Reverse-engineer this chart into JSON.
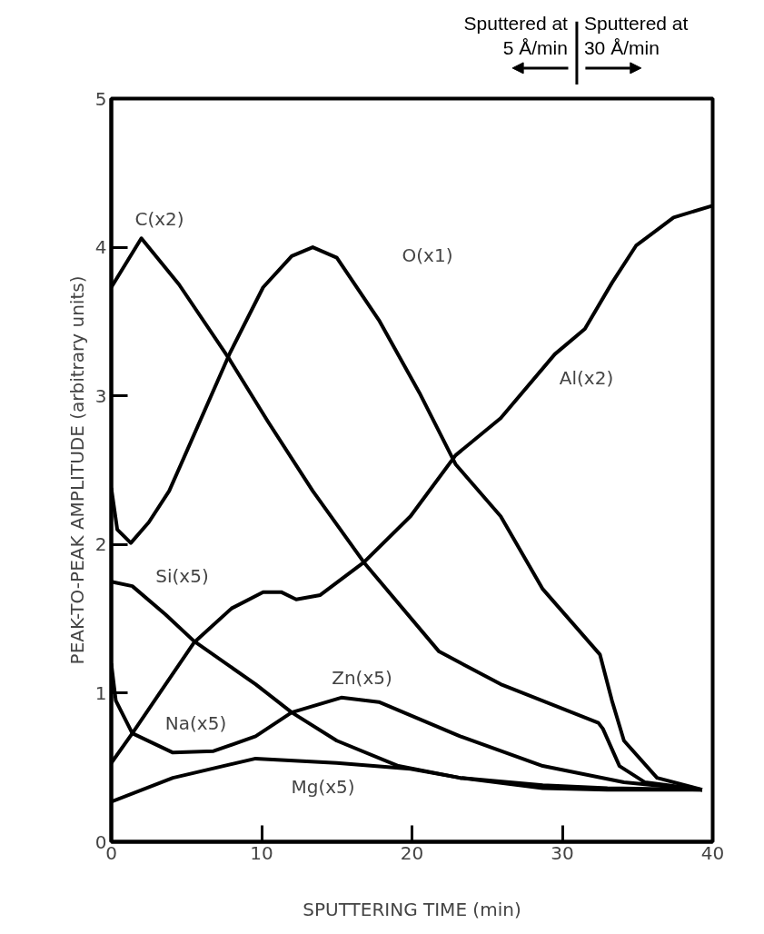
{
  "chart_data": {
    "type": "line",
    "xlabel": "SPUTTERING TIME (min)",
    "ylabel": "PEAK-TO-PEAK AMPLITUDE (arbitrary units)",
    "xlim": [
      0,
      40
    ],
    "ylim": [
      0,
      5
    ],
    "xticks": [
      0,
      10,
      20,
      30,
      40
    ],
    "yticks": [
      0,
      1,
      2,
      3,
      4,
      5
    ],
    "grid": false,
    "marker": "none",
    "line_style": "solid",
    "series": [
      {
        "color": "#000000",
        "x": [
          0,
          2.0,
          4.5,
          7.9,
          10.4,
          13.4,
          16.8,
          21.8,
          25.9,
          32.4,
          32.7,
          33.8,
          35.5,
          39.3
        ],
        "values": [
          3.73,
          4.06,
          3.75,
          3.24,
          2.83,
          2.36,
          1.88,
          1.28,
          1.06,
          0.8,
          0.76,
          0.51,
          0.4,
          0.35
        ]
      },
      {
        "color": "#000000",
        "x": [
          0,
          0.4,
          1.3,
          2.5,
          3.85,
          4.9,
          7.9,
          10.1,
          12.0,
          13.4,
          15.0,
          17.8,
          20.5,
          22.9,
          25.9,
          28.7,
          32.5,
          33.3,
          34.1,
          36.3,
          39.3
        ],
        "values": [
          2.38,
          2.1,
          2.01,
          2.15,
          2.36,
          2.6,
          3.29,
          3.73,
          3.94,
          4.0,
          3.93,
          3.51,
          3.02,
          2.54,
          2.19,
          1.7,
          1.26,
          0.95,
          0.68,
          0.43,
          0.35
        ]
      },
      {
        "color": "#000000",
        "x": [
          0,
          1.4,
          5.5,
          8.0,
          10.1,
          11.3,
          12.3,
          13.9,
          16.8,
          19.9,
          22.9,
          25.9,
          29.5,
          31.5,
          33.3,
          34.9,
          37.4,
          40
        ],
        "values": [
          0.53,
          0.73,
          1.34,
          1.57,
          1.68,
          1.68,
          1.63,
          1.66,
          1.88,
          2.19,
          2.6,
          2.85,
          3.28,
          3.45,
          3.76,
          4.01,
          4.2,
          4.28
        ]
      },
      {
        "color": "#000000",
        "x": [
          0,
          1.4,
          3.6,
          5.5,
          9.6,
          12.0,
          15.0,
          19.1,
          23.2,
          28.7,
          33.0,
          39.3
        ],
        "values": [
          1.75,
          1.72,
          1.53,
          1.35,
          1.06,
          0.87,
          0.68,
          0.51,
          0.43,
          0.38,
          0.36,
          0.35
        ]
      },
      {
        "color": "#000000",
        "x": [
          0,
          0.3,
          1.4,
          4.1,
          6.8,
          9.6,
          12.0,
          15.3,
          17.8,
          23.2,
          28.7,
          34.1,
          39.3
        ],
        "values": [
          1.2,
          0.95,
          0.73,
          0.6,
          0.61,
          0.71,
          0.87,
          0.97,
          0.94,
          0.71,
          0.51,
          0.4,
          0.35
        ]
      },
      {
        "color": "#000000",
        "x": [
          0,
          4.1,
          9.6,
          15.0,
          19.9,
          23.2,
          28.7,
          33.0,
          39.3
        ],
        "values": [
          0.27,
          0.43,
          0.56,
          0.53,
          0.49,
          0.43,
          0.36,
          0.35,
          0.35
        ]
      }
    ],
    "annotations": [
      "C(x2)",
      "O(x1)",
      "Al(x2)",
      "Si(x5)",
      "Na(x5)",
      "Zn(x5)",
      "Mg(x5)",
      "Sputtered at\n5 Å/min",
      "Sputtered at\n30 Å/min"
    ]
  }
}
